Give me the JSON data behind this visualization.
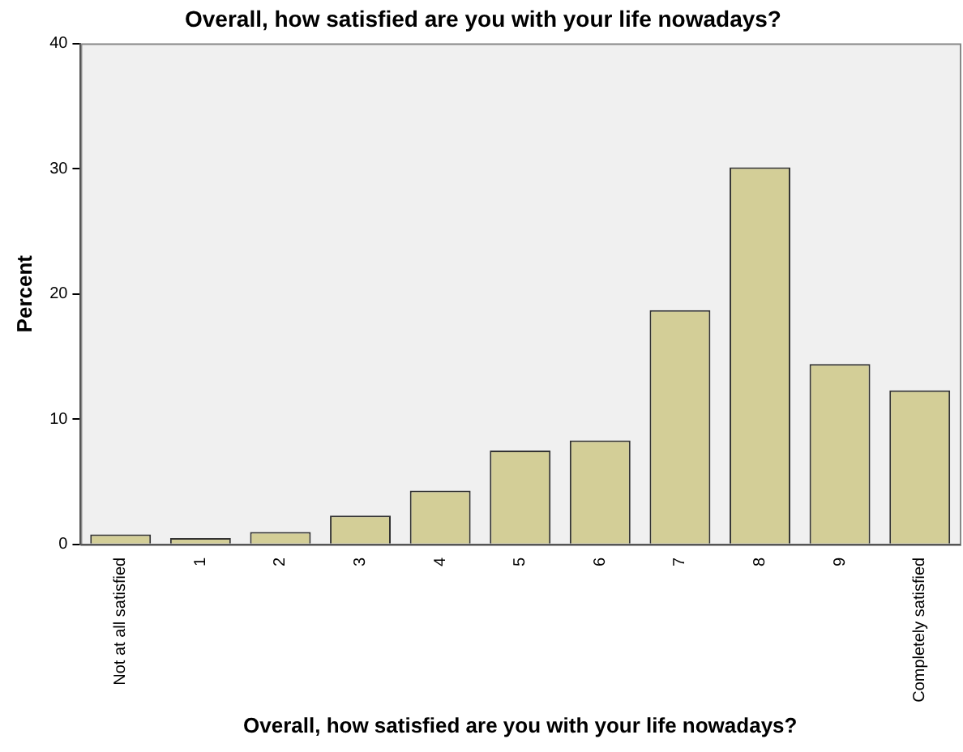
{
  "chart_data": {
    "type": "bar",
    "title": "Overall, how satisfied are you with your life nowadays?",
    "xlabel": "Overall, how satisfied are you with your life nowadays?",
    "ylabel": "Percent",
    "categories": [
      "Not at all satisfied",
      "1",
      "2",
      "3",
      "4",
      "5",
      "6",
      "7",
      "8",
      "9",
      "Completely satisfied"
    ],
    "values": [
      0.8,
      0.5,
      1.0,
      2.3,
      4.3,
      7.5,
      8.3,
      18.7,
      30.1,
      14.4,
      12.3
    ],
    "color": "#d3ce97",
    "ylim": [
      0,
      40
    ],
    "yticks": [
      0,
      10,
      20,
      30,
      40
    ],
    "grid": false,
    "legend": false
  }
}
